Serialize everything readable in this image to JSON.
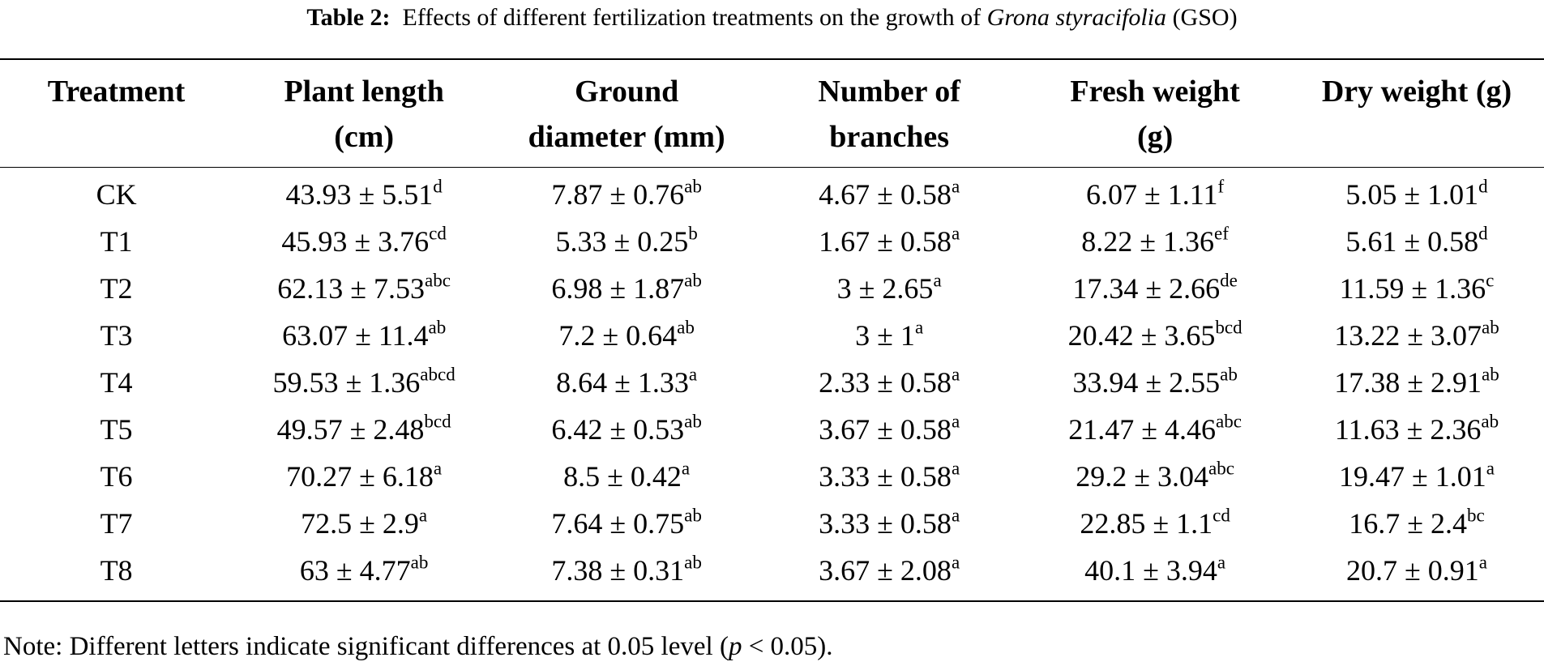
{
  "caption": {
    "label": "Table 2:",
    "text_before": "Effects of different fertilization treatments on the growth of",
    "species": "Grona styracifolia",
    "text_after": "(GSO)"
  },
  "headers": [
    {
      "line1": "Treatment",
      "line2": ""
    },
    {
      "line1": "Plant length",
      "line2": "(cm)"
    },
    {
      "line1": "Ground",
      "line2": "diameter (mm)"
    },
    {
      "line1": "Number of",
      "line2": "branches"
    },
    {
      "line1": "Fresh weight",
      "line2": "(g)"
    },
    {
      "line1": "Dry weight (g)",
      "line2": ""
    }
  ],
  "rows": [
    {
      "treatment": "CK",
      "cells": [
        [
          "43.93 ± 5.51",
          "d"
        ],
        [
          "7.87 ± 0.76",
          "ab"
        ],
        [
          "4.67 ± 0.58",
          "a"
        ],
        [
          "6.07 ± 1.11",
          "f"
        ],
        [
          "5.05 ± 1.01",
          "d"
        ]
      ]
    },
    {
      "treatment": "T1",
      "cells": [
        [
          "45.93 ± 3.76",
          "cd"
        ],
        [
          "5.33 ± 0.25",
          "b"
        ],
        [
          "1.67 ± 0.58",
          "a"
        ],
        [
          "8.22 ± 1.36",
          "ef"
        ],
        [
          "5.61 ± 0.58",
          "d"
        ]
      ]
    },
    {
      "treatment": "T2",
      "cells": [
        [
          "62.13 ± 7.53",
          "abc"
        ],
        [
          "6.98 ± 1.87",
          "ab"
        ],
        [
          "3 ± 2.65",
          "a"
        ],
        [
          "17.34 ± 2.66",
          "de"
        ],
        [
          "11.59 ± 1.36",
          "c"
        ]
      ]
    },
    {
      "treatment": "T3",
      "cells": [
        [
          "63.07 ± 11.4",
          "ab"
        ],
        [
          "7.2 ± 0.64",
          "ab"
        ],
        [
          "3 ± 1",
          "a"
        ],
        [
          "20.42 ± 3.65",
          "bcd"
        ],
        [
          "13.22 ± 3.07",
          "ab"
        ]
      ]
    },
    {
      "treatment": "T4",
      "cells": [
        [
          "59.53 ± 1.36",
          "abcd"
        ],
        [
          "8.64 ± 1.33",
          "a"
        ],
        [
          "2.33 ± 0.58",
          "a"
        ],
        [
          "33.94 ± 2.55",
          "ab"
        ],
        [
          "17.38 ± 2.91",
          "ab"
        ]
      ]
    },
    {
      "treatment": "T5",
      "cells": [
        [
          "49.57 ± 2.48",
          "bcd"
        ],
        [
          "6.42 ± 0.53",
          "ab"
        ],
        [
          "3.67 ± 0.58",
          "a"
        ],
        [
          "21.47 ± 4.46",
          "abc"
        ],
        [
          "11.63 ± 2.36",
          "ab"
        ]
      ]
    },
    {
      "treatment": "T6",
      "cells": [
        [
          "70.27 ± 6.18",
          "a"
        ],
        [
          "8.5 ± 0.42",
          "a"
        ],
        [
          "3.33 ± 0.58",
          "a"
        ],
        [
          "29.2 ± 3.04",
          "abc"
        ],
        [
          "19.47 ± 1.01",
          "a"
        ]
      ]
    },
    {
      "treatment": "T7",
      "cells": [
        [
          "72.5 ± 2.9",
          "a"
        ],
        [
          "7.64 ± 0.75",
          "ab"
        ],
        [
          "3.33 ± 0.58",
          "a"
        ],
        [
          "22.85 ± 1.1",
          "cd"
        ],
        [
          "16.7 ± 2.4",
          "bc"
        ]
      ]
    },
    {
      "treatment": "T8",
      "cells": [
        [
          "63 ± 4.77",
          "ab"
        ],
        [
          "7.38 ± 0.31",
          "ab"
        ],
        [
          "3.67 ± 2.08",
          "a"
        ],
        [
          "40.1 ± 3.94",
          "a"
        ],
        [
          "20.7 ± 0.91",
          "a"
        ]
      ]
    }
  ],
  "note": {
    "text_before": "Note: Different letters indicate significant differences at 0.05 level (",
    "p": "p",
    "text_after": " < 0.05)."
  }
}
